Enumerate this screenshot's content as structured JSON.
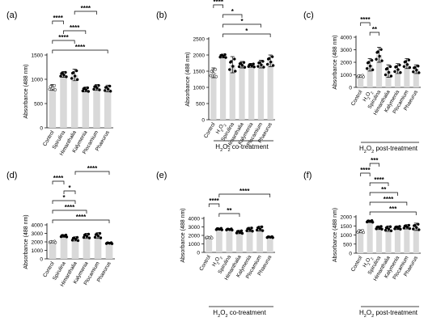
{
  "chart_data": [
    {
      "panel_label": "(a)",
      "type": "bar",
      "ylabel": "Absorbance (488 nm)",
      "ylim": [
        0,
        1500
      ],
      "yticks": [
        "0",
        "500",
        "1000",
        "1500"
      ],
      "categories": [
        "Control",
        "Spirulina",
        "Himanthalia",
        "Kalymenia",
        "Plocamium",
        "Phaeurus"
      ],
      "values": [
        830,
        1100,
        1090,
        790,
        830,
        810
      ],
      "errors": [
        60,
        60,
        120,
        50,
        60,
        70
      ],
      "brackets": [
        {
          "from": 0,
          "to": 5,
          "label": "****"
        },
        {
          "from": 0,
          "to": 2,
          "label": "****"
        },
        {
          "from": 1,
          "to": 3,
          "label": "****"
        },
        {
          "from": 0,
          "to": 1,
          "label": "****"
        },
        {
          "from": 2,
          "to": 4,
          "label": "****"
        }
      ],
      "subtitle": ""
    },
    {
      "panel_label": "(b)",
      "type": "bar",
      "ylabel": "Absorbance (488 nm)",
      "ylim": [
        0,
        2500
      ],
      "yticks": [
        "0",
        "500",
        "1000",
        "1500",
        "2000",
        "2500"
      ],
      "categories": [
        "Control",
        "H2O2",
        "Spirulina",
        "Himanthalia",
        "Kalymenia",
        "Plocamium",
        "Phaeurus"
      ],
      "values": [
        1450,
        1970,
        1700,
        1700,
        1680,
        1720,
        1820
      ],
      "errors": [
        150,
        60,
        250,
        100,
        60,
        120,
        180
      ],
      "brackets": [
        {
          "from": 1,
          "to": 6,
          "label": "*"
        },
        {
          "from": 1,
          "to": 5,
          "label": "*"
        },
        {
          "from": 1,
          "to": 3,
          "label": "*"
        },
        {
          "from": 0,
          "to": 1,
          "label": "****"
        }
      ],
      "subtitle": "H2O2 co-treatment"
    },
    {
      "panel_label": "(c)",
      "type": "bar",
      "ylabel": "Absorbance (488 nm)",
      "ylim": [
        0,
        4000
      ],
      "yticks": [
        "0",
        "1000",
        "2000",
        "3000",
        "4000"
      ],
      "categories": [
        "Control",
        "H2O2",
        "Spirulina",
        "Himanthalia",
        "Kalymenia",
        "Plocamium",
        "Phaeurus"
      ],
      "values": [
        900,
        1800,
        2600,
        1300,
        1500,
        1900,
        1450
      ],
      "errors": [
        80,
        500,
        600,
        500,
        400,
        400,
        350
      ],
      "brackets": [
        {
          "from": 1,
          "to": 2,
          "label": "**"
        },
        {
          "from": 0,
          "to": 1,
          "label": "****"
        }
      ],
      "subtitle": "H2O2 post-treatment"
    },
    {
      "panel_label": "(d)",
      "type": "bar",
      "ylabel": "Absorbance (488 nm)",
      "ylim": [
        0,
        4000
      ],
      "yticks": [
        "0",
        "1000",
        "2000",
        "3000",
        "4000"
      ],
      "categories": [
        "Control",
        "Spirulina",
        "Himanthalia",
        "Kalymenia",
        "Plocamium",
        "Phaeurus"
      ],
      "values": [
        2000,
        2700,
        2350,
        2700,
        2750,
        1850
      ],
      "errors": [
        100,
        150,
        250,
        300,
        350,
        80
      ],
      "brackets": [
        {
          "from": 0,
          "to": 5,
          "label": "****"
        },
        {
          "from": 0,
          "to": 3,
          "label": "****"
        },
        {
          "from": 0,
          "to": 2,
          "label": "*"
        },
        {
          "from": 1,
          "to": 2,
          "label": "*"
        },
        {
          "from": 0,
          "to": 1,
          "label": "****"
        },
        {
          "from": 2,
          "to": 5,
          "label": "****"
        }
      ],
      "subtitle": ""
    },
    {
      "panel_label": "(e)",
      "type": "bar",
      "ylabel": "Absorbance (488 nm)",
      "ylim": [
        0,
        4000
      ],
      "yticks": [
        "0",
        "1000",
        "2000",
        "3000",
        "4000"
      ],
      "categories": [
        "Control",
        "H2O2",
        "Spirulina",
        "Himanthalia",
        "Kalymenia",
        "Plocamium",
        "Phaeurus"
      ],
      "values": [
        1750,
        2750,
        2700,
        2400,
        2700,
        2800,
        1800
      ],
      "errors": [
        80,
        120,
        100,
        200,
        250,
        300,
        80
      ],
      "brackets": [
        {
          "from": 1,
          "to": 3,
          "label": "**"
        },
        {
          "from": 0,
          "to": 1,
          "label": "****"
        },
        {
          "from": 1,
          "to": 6,
          "label": "****"
        }
      ],
      "subtitle": "H2O2 co-treatment"
    },
    {
      "panel_label": "(f)",
      "type": "bar",
      "ylabel": "Absorbance (488 nm)",
      "ylim": [
        0,
        2000
      ],
      "yticks": [
        "0",
        "500",
        "1000",
        "1500",
        "2000"
      ],
      "categories": [
        "Control",
        "H2O2",
        "Spirulina",
        "Himanthalia",
        "Kalymenia",
        "Plocamium",
        "Phaeurus"
      ],
      "values": [
        1200,
        1750,
        1400,
        1350,
        1400,
        1450,
        1450
      ],
      "errors": [
        80,
        60,
        100,
        150,
        100,
        120,
        200
      ],
      "brackets": [
        {
          "from": 1,
          "to": 6,
          "label": "***"
        },
        {
          "from": 1,
          "to": 5,
          "label": "****"
        },
        {
          "from": 1,
          "to": 4,
          "label": "**"
        },
        {
          "from": 1,
          "to": 3,
          "label": "****"
        },
        {
          "from": 0,
          "to": 1,
          "label": "****"
        },
        {
          "from": 1,
          "to": 2,
          "label": "***"
        }
      ],
      "subtitle": "H2O2 post-treatment"
    }
  ]
}
